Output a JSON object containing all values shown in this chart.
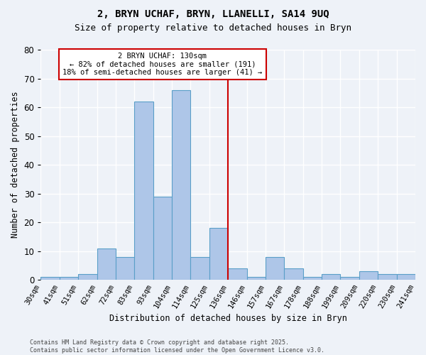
{
  "title1": "2, BRYN UCHAF, BRYN, LLANELLI, SA14 9UQ",
  "title2": "Size of property relative to detached houses in Bryn",
  "xlabel": "Distribution of detached houses by size in Bryn",
  "ylabel": "Number of detached properties",
  "bin_labels": [
    "30sqm",
    "41sqm",
    "51sqm",
    "62sqm",
    "72sqm",
    "83sqm",
    "93sqm",
    "104sqm",
    "114sqm",
    "125sqm",
    "136sqm",
    "146sqm",
    "157sqm",
    "167sqm",
    "178sqm",
    "188sqm",
    "199sqm",
    "209sqm",
    "220sqm",
    "230sqm",
    "241sqm"
  ],
  "values": [
    1,
    1,
    2,
    11,
    8,
    62,
    29,
    66,
    8,
    18,
    4,
    1,
    8,
    4,
    1,
    2,
    1,
    3,
    2,
    2
  ],
  "bar_color": "#aec6e8",
  "bar_edge_color": "#5a9fc8",
  "vline_x": 9.5,
  "vline_color": "#cc0000",
  "annotation_text": "2 BRYN UCHAF: 130sqm\n← 82% of detached houses are smaller (191)\n18% of semi-detached houses are larger (41) →",
  "annotation_box_color": "#ffffff",
  "annotation_box_edge": "#cc0000",
  "ylim": [
    0,
    80
  ],
  "yticks": [
    0,
    10,
    20,
    30,
    40,
    50,
    60,
    70,
    80
  ],
  "background_color": "#eef2f8",
  "grid_color": "#ffffff",
  "footer": "Contains HM Land Registry data © Crown copyright and database right 2025.\nContains public sector information licensed under the Open Government Licence v3.0."
}
